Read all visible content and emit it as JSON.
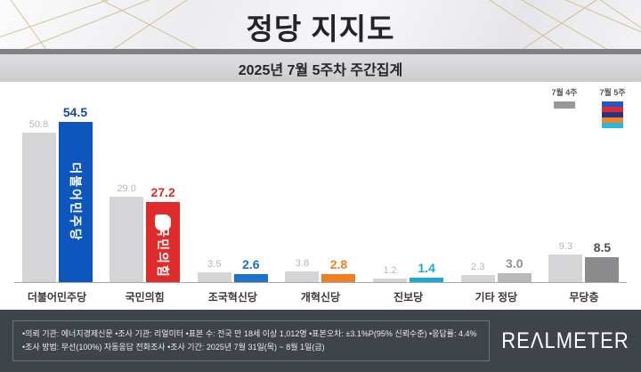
{
  "header": {
    "title": "정당 지지도",
    "subtitle": "2025년 7월 5주차 주간집계"
  },
  "legend": {
    "prev_label": "7월 4주",
    "curr_label": "7월 5주",
    "prev_color": "#98989b",
    "curr_stripes": [
      "#2356c4",
      "#d42d33",
      "#27357d",
      "#ee8430",
      "#2cb6d9"
    ]
  },
  "chart_data": {
    "type": "bar",
    "title": "정당 지지도",
    "subtitle": "2025년 7월 5주차 주간집계",
    "categories": [
      "더불어민주당",
      "국민의힘",
      "조국혁신당",
      "개혁신당",
      "진보당",
      "기타 정당",
      "무당층"
    ],
    "series": [
      {
        "name": "7월 4주",
        "color": "#d5d5d7",
        "values": [
          50.8,
          29.0,
          3.5,
          3.8,
          1.2,
          2.3,
          9.3
        ]
      },
      {
        "name": "7월 5주",
        "values": [
          54.5,
          27.2,
          2.6,
          2.8,
          1.4,
          3.0,
          8.5
        ],
        "colors": [
          "#0d56bd",
          "#e02b2b",
          "#1e73c8",
          "#f07f23",
          "#1fa8d5",
          "#b9b9bb",
          "#8b8b8d"
        ]
      }
    ],
    "value_label_colors": [
      "#14469f",
      "#e02b2b",
      "#1a6fc4",
      "#f07f23",
      "#1fa8d5",
      "#909092",
      "#4c4c4e"
    ],
    "prev_value_label_color": "#b5b5b8",
    "bar_logos": [
      {
        "index": 0,
        "text": "더불어민주당",
        "glyph": false
      },
      {
        "index": 1,
        "text": "국민의힘",
        "glyph": true
      }
    ],
    "ylim": [
      0,
      60
    ],
    "grid": false,
    "legend_position": "top-right"
  },
  "footer": {
    "line1": "•의뢰 기관: 에너지경제신문  •조사 기관: 리얼미터 •표본 수: 전국 만 18세 이상 1,012명 •표본오차: ±3.1%P(95% 신뢰수준) •응답률: 4.4%",
    "line2": "•조사 방법: 무선(100%) 자동응답 전화조사 •조사 기간: 2025년 7월 31일(목) ~ 8월 1일(금)",
    "brand": "REΛLMETER"
  }
}
